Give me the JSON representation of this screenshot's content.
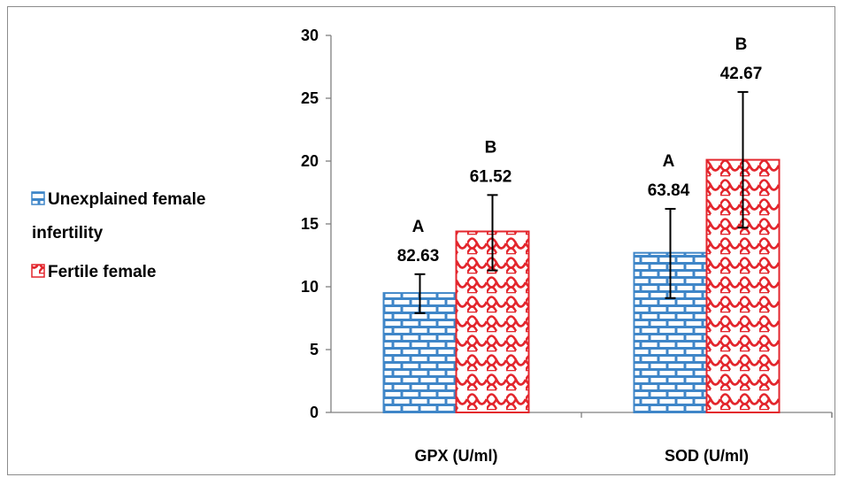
{
  "chart_data": {
    "type": "bar",
    "title": "",
    "xlabel": "",
    "ylabel": "",
    "categories": [
      "GPX (U/ml)",
      "SOD (U/ml)"
    ],
    "ylim": [
      0,
      30
    ],
    "yticks": [
      0,
      5,
      10,
      15,
      20,
      25,
      30
    ],
    "grid": false,
    "legend_position": "left",
    "series": [
      {
        "name": "Unexplained female infertility",
        "legend_lines": [
          "Unexplained female",
          "infertility"
        ],
        "color": "#3f86c8",
        "pattern": "brick",
        "values": [
          9.5,
          12.7
        ],
        "error_low": [
          7.9,
          9.1
        ],
        "error_high": [
          11.0,
          16.2
        ],
        "group_letters": [
          "A",
          "A"
        ],
        "percent_labels": [
          "82.63",
          "63.84"
        ]
      },
      {
        "name": "Fertile female",
        "legend_lines": [
          "Fertile female"
        ],
        "color": "#e3262d",
        "pattern": "scale",
        "values": [
          14.4,
          20.1
        ],
        "error_low": [
          11.3,
          14.7
        ],
        "error_high": [
          17.3,
          25.5
        ],
        "group_letters": [
          "B",
          "B"
        ],
        "percent_labels": [
          "61.52",
          "42.67"
        ]
      }
    ]
  }
}
